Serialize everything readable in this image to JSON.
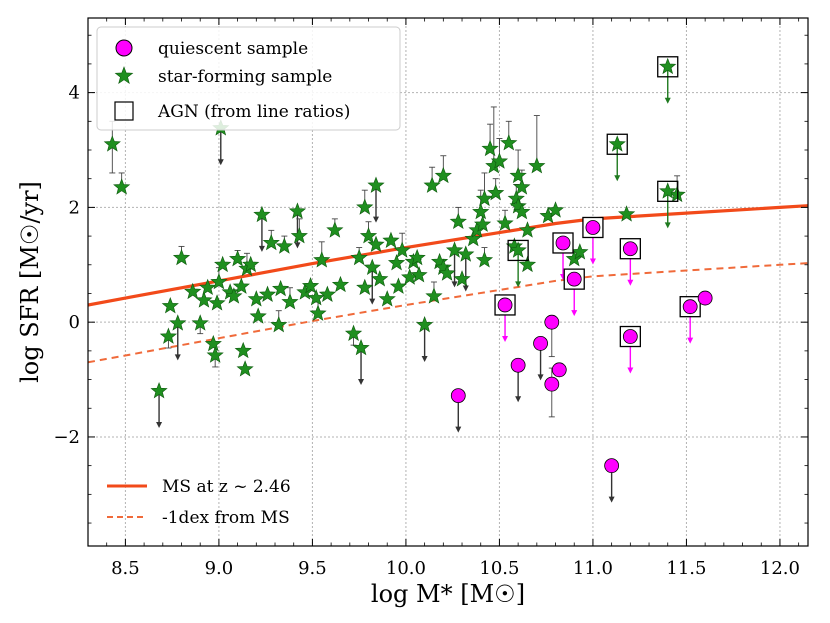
{
  "chart_data": {
    "type": "scatter",
    "xlabel": "log M* [M☉]",
    "ylabel": "log SFR [M☉/yr]",
    "xlim": [
      8.3,
      12.15
    ],
    "ylim": [
      -3.9,
      5.3
    ],
    "xticks": [
      8.5,
      9.0,
      9.5,
      10.0,
      10.5,
      11.0,
      11.5,
      12.0
    ],
    "xtick_labels": [
      "8.5",
      "9.0",
      "9.5",
      "10.0",
      "10.5",
      "11.0",
      "11.5",
      "12.0"
    ],
    "yticks": [
      -2,
      0,
      2,
      4
    ],
    "ytick_labels": [
      "−2",
      "0",
      "2",
      "4"
    ],
    "grid": true,
    "legend_top": {
      "position": "top-left",
      "entries": [
        {
          "label": "quiescent sample",
          "marker": "circle",
          "color": "#ff00ff"
        },
        {
          "label": "star-forming sample",
          "marker": "star",
          "color": "#1f8f1f"
        },
        {
          "label": "AGN (from line ratios)",
          "marker": "square",
          "color": "none"
        }
      ]
    },
    "legend_bottom": {
      "position": "lower-left",
      "entries": [
        {
          "label": "MS at z ~ 2.46",
          "style": "solid",
          "color": "#f24a1a"
        },
        {
          "label": "-1dex from MS",
          "style": "dashed",
          "color": "#f06a3a"
        }
      ]
    },
    "main_sequence": {
      "name": "MS at z ~ 2.46",
      "color": "#f24a1a",
      "x": [
        8.3,
        8.5,
        9.0,
        9.5,
        10.0,
        10.5,
        10.8,
        11.0,
        11.5,
        12.0,
        12.15
      ],
      "y": [
        0.3,
        0.42,
        0.72,
        1.02,
        1.3,
        1.56,
        1.72,
        1.8,
        1.9,
        2.0,
        2.03
      ]
    },
    "minus_one_dex": {
      "name": "-1dex from MS",
      "color": "#f06a3a",
      "x": [
        8.3,
        8.5,
        9.0,
        9.5,
        10.0,
        10.5,
        10.8,
        11.0,
        11.5,
        12.0,
        12.15
      ],
      "y": [
        -0.7,
        -0.58,
        -0.28,
        0.02,
        0.3,
        0.56,
        0.72,
        0.8,
        0.9,
        1.0,
        1.03
      ]
    },
    "star_forming": {
      "color": "#1f8f1f",
      "points": [
        {
          "x": 8.43,
          "y": 3.1,
          "up": 3.5,
          "lo": 2.6
        },
        {
          "x": 8.48,
          "y": 2.35,
          "up": 2.6
        },
        {
          "x": 8.68,
          "y": -1.2,
          "limit": true
        },
        {
          "x": 8.73,
          "y": -0.25,
          "lo": -0.45
        },
        {
          "x": 8.74,
          "y": 0.28
        },
        {
          "x": 8.78,
          "y": -0.02,
          "limit": true
        },
        {
          "x": 8.8,
          "y": 1.12,
          "up": 1.32
        },
        {
          "x": 8.86,
          "y": 0.53
        },
        {
          "x": 8.9,
          "y": -0.02,
          "lo": -0.2
        },
        {
          "x": 8.92,
          "y": 0.38
        },
        {
          "x": 8.94,
          "y": 0.6
        },
        {
          "x": 8.97,
          "y": -0.38
        },
        {
          "x": 8.98,
          "y": -0.58,
          "lo": -0.78
        },
        {
          "x": 8.99,
          "y": 0.33
        },
        {
          "x": 9.0,
          "y": 0.7,
          "up": 0.95
        },
        {
          "x": 9.01,
          "y": 3.38,
          "limit": true
        },
        {
          "x": 9.02,
          "y": 1.0
        },
        {
          "x": 9.06,
          "y": 0.52
        },
        {
          "x": 9.08,
          "y": 0.45
        },
        {
          "x": 9.1,
          "y": 1.1,
          "up": 1.25
        },
        {
          "x": 9.12,
          "y": 0.62
        },
        {
          "x": 9.13,
          "y": -0.5
        },
        {
          "x": 9.14,
          "y": -0.82
        },
        {
          "x": 9.15,
          "y": 0.93,
          "up": 1.2
        },
        {
          "x": 9.17,
          "y": 1.0
        },
        {
          "x": 9.2,
          "y": 0.4
        },
        {
          "x": 9.21,
          "y": 0.1
        },
        {
          "x": 9.23,
          "y": 1.87,
          "limit": true
        },
        {
          "x": 9.26,
          "y": 0.48
        },
        {
          "x": 9.28,
          "y": 1.38,
          "up": 1.6
        },
        {
          "x": 9.32,
          "y": -0.05,
          "up": 0.2
        },
        {
          "x": 9.33,
          "y": 0.58
        },
        {
          "x": 9.35,
          "y": 1.32,
          "up": 1.5
        },
        {
          "x": 9.38,
          "y": 0.35,
          "up": 0.6
        },
        {
          "x": 9.42,
          "y": 1.93,
          "limit": true
        },
        {
          "x": 9.43,
          "y": 1.5,
          "up": 1.8
        },
        {
          "x": 9.46,
          "y": 0.52
        },
        {
          "x": 9.49,
          "y": 0.63
        },
        {
          "x": 9.52,
          "y": 0.42
        },
        {
          "x": 9.53,
          "y": 0.15,
          "up": 0.35
        },
        {
          "x": 9.55,
          "y": 1.08,
          "up": 1.4
        },
        {
          "x": 9.58,
          "y": 0.48
        },
        {
          "x": 9.62,
          "y": 1.6,
          "up": 1.8
        },
        {
          "x": 9.65,
          "y": 0.65
        },
        {
          "x": 9.72,
          "y": -0.2,
          "lo": -0.4
        },
        {
          "x": 9.75,
          "y": 1.12,
          "up": 1.3
        },
        {
          "x": 9.76,
          "y": -0.45,
          "limit": true
        },
        {
          "x": 9.78,
          "y": 2.0,
          "up": 2.3
        },
        {
          "x": 9.78,
          "y": 0.6
        },
        {
          "x": 9.8,
          "y": 1.5,
          "up": 1.75
        },
        {
          "x": 9.82,
          "y": 0.95,
          "limit": true
        },
        {
          "x": 9.84,
          "y": 2.38,
          "limit": true
        },
        {
          "x": 9.84,
          "y": 1.35
        },
        {
          "x": 9.86,
          "y": 0.75
        },
        {
          "x": 9.9,
          "y": 0.4
        },
        {
          "x": 9.92,
          "y": 1.42
        },
        {
          "x": 9.95,
          "y": 1.03
        },
        {
          "x": 9.96,
          "y": 0.62
        },
        {
          "x": 9.98,
          "y": 1.25,
          "up": 1.55
        },
        {
          "x": 10.02,
          "y": 0.78
        },
        {
          "x": 10.04,
          "y": 1.05
        },
        {
          "x": 10.06,
          "y": 1.12
        },
        {
          "x": 10.07,
          "y": 0.82
        },
        {
          "x": 10.1,
          "y": -0.05,
          "limit": true
        },
        {
          "x": 10.14,
          "y": 2.38,
          "up": 2.7
        },
        {
          "x": 10.15,
          "y": 0.45,
          "up": 0.7
        },
        {
          "x": 10.18,
          "y": 1.05
        },
        {
          "x": 10.2,
          "y": 0.95
        },
        {
          "x": 10.2,
          "y": 2.55,
          "up": 2.9
        },
        {
          "x": 10.22,
          "y": 0.85
        },
        {
          "x": 10.26,
          "y": 1.25,
          "limit": true
        },
        {
          "x": 10.28,
          "y": 1.75,
          "up": 2.0
        },
        {
          "x": 10.3,
          "y": 0.75
        },
        {
          "x": 10.32,
          "y": 1.18,
          "limit": true
        },
        {
          "x": 10.36,
          "y": 1.45
        },
        {
          "x": 10.38,
          "y": 1.6
        },
        {
          "x": 10.4,
          "y": 1.92,
          "up": 2.3
        },
        {
          "x": 10.41,
          "y": 1.7
        },
        {
          "x": 10.42,
          "y": 2.15,
          "up": 2.6
        },
        {
          "x": 10.42,
          "y": 1.08,
          "up": 1.3
        },
        {
          "x": 10.45,
          "y": 3.02,
          "up": 3.45
        },
        {
          "x": 10.47,
          "y": 2.72,
          "up": 3.75
        },
        {
          "x": 10.48,
          "y": 2.25,
          "up": 2.5
        },
        {
          "x": 10.5,
          "y": 2.8,
          "up": 3.2
        },
        {
          "x": 10.55,
          "y": 3.12,
          "up": 3.5
        },
        {
          "x": 10.53,
          "y": 1.72,
          "up": 1.95
        },
        {
          "x": 10.58,
          "y": 1.32
        },
        {
          "x": 10.59,
          "y": 2.15,
          "up": 2.4
        },
        {
          "x": 10.6,
          "y": 2.02
        },
        {
          "x": 10.62,
          "y": 2.35,
          "up": 2.65
        },
        {
          "x": 10.62,
          "y": 1.92
        },
        {
          "x": 10.65,
          "y": 1.6
        },
        {
          "x": 10.65,
          "y": 1.0
        },
        {
          "x": 10.6,
          "y": 2.55,
          "up": 3.0
        },
        {
          "x": 10.7,
          "y": 2.72,
          "up": 3.6
        },
        {
          "x": 10.76,
          "y": 1.85
        },
        {
          "x": 10.8,
          "y": 1.95
        },
        {
          "x": 10.9,
          "y": 1.1
        },
        {
          "x": 10.93,
          "y": 1.22
        },
        {
          "x": 11.18,
          "y": 1.88
        },
        {
          "x": 11.45,
          "y": 2.22,
          "up": 2.55
        },
        {
          "x": 10.6,
          "y": 1.25,
          "limit": true,
          "agn": true
        },
        {
          "x": 11.13,
          "y": 3.1,
          "limit": true,
          "agn": true
        },
        {
          "x": 11.4,
          "y": 4.45,
          "limit": true,
          "agn": true
        },
        {
          "x": 11.4,
          "y": 2.28,
          "limit": true,
          "agn": true
        }
      ]
    },
    "quiescent": {
      "color": "#ff00ff",
      "points": [
        {
          "x": 10.28,
          "y": -1.28,
          "limit": true
        },
        {
          "x": 10.53,
          "y": 0.3,
          "limit": true,
          "agn": true
        },
        {
          "x": 10.6,
          "y": -0.75,
          "limit": true
        },
        {
          "x": 10.72,
          "y": -0.37,
          "limit": true
        },
        {
          "x": 10.78,
          "y": 0.0,
          "lo": -0.6
        },
        {
          "x": 10.78,
          "y": -1.08,
          "lo": -1.65,
          "up": -0.8
        },
        {
          "x": 10.82,
          "y": -0.83
        },
        {
          "x": 10.84,
          "y": 1.38,
          "limit": true,
          "agn": true
        },
        {
          "x": 10.9,
          "y": 0.75,
          "limit": true,
          "agn": true
        },
        {
          "x": 11.0,
          "y": 1.65,
          "limit": true,
          "agn": true
        },
        {
          "x": 11.1,
          "y": -2.5,
          "limit": true
        },
        {
          "x": 11.2,
          "y": 1.28,
          "limit": true,
          "agn": true
        },
        {
          "x": 11.2,
          "y": -0.25,
          "limit": true,
          "agn": true
        },
        {
          "x": 11.52,
          "y": 0.27,
          "limit": true,
          "agn": true
        },
        {
          "x": 11.6,
          "y": 0.42
        }
      ]
    }
  }
}
